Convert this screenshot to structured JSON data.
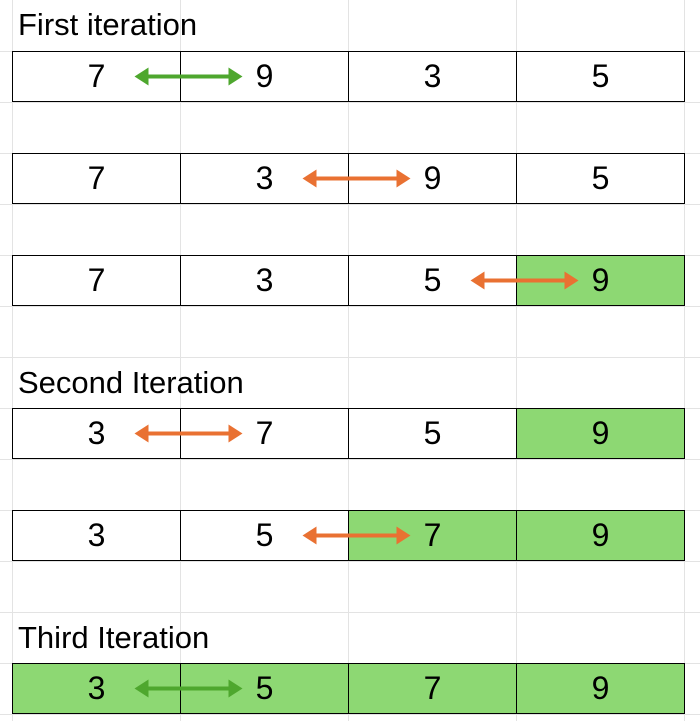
{
  "colors": {
    "sorted_fill": "#8dd873",
    "arrow_green": "#4ea72e",
    "arrow_orange": "#e97132",
    "cell_border": "#000000",
    "gridline": "#e3e3e3"
  },
  "headings": {
    "first": "First iteration",
    "second": "Second Iteration",
    "third": "Third Iteration"
  },
  "rows": [
    {
      "values": [
        "7",
        "9",
        "3",
        "5"
      ],
      "sorted": [
        false,
        false,
        false,
        false
      ],
      "swap": [
        0,
        1
      ],
      "arrow_color": "green"
    },
    {
      "values": [
        "7",
        "3",
        "9",
        "5"
      ],
      "sorted": [
        false,
        false,
        false,
        false
      ],
      "swap": [
        1,
        2
      ],
      "arrow_color": "orange"
    },
    {
      "values": [
        "7",
        "3",
        "5",
        "9"
      ],
      "sorted": [
        false,
        false,
        false,
        true
      ],
      "swap": [
        2,
        3
      ],
      "arrow_color": "orange"
    },
    {
      "values": [
        "3",
        "7",
        "5",
        "9"
      ],
      "sorted": [
        false,
        false,
        false,
        true
      ],
      "swap": [
        0,
        1
      ],
      "arrow_color": "orange"
    },
    {
      "values": [
        "3",
        "5",
        "7",
        "9"
      ],
      "sorted": [
        false,
        false,
        true,
        true
      ],
      "swap": [
        1,
        2
      ],
      "arrow_color": "orange"
    },
    {
      "values": [
        "3",
        "5",
        "7",
        "9"
      ],
      "sorted": [
        true,
        true,
        true,
        true
      ],
      "swap": [
        0,
        1
      ],
      "arrow_color": "green"
    }
  ]
}
